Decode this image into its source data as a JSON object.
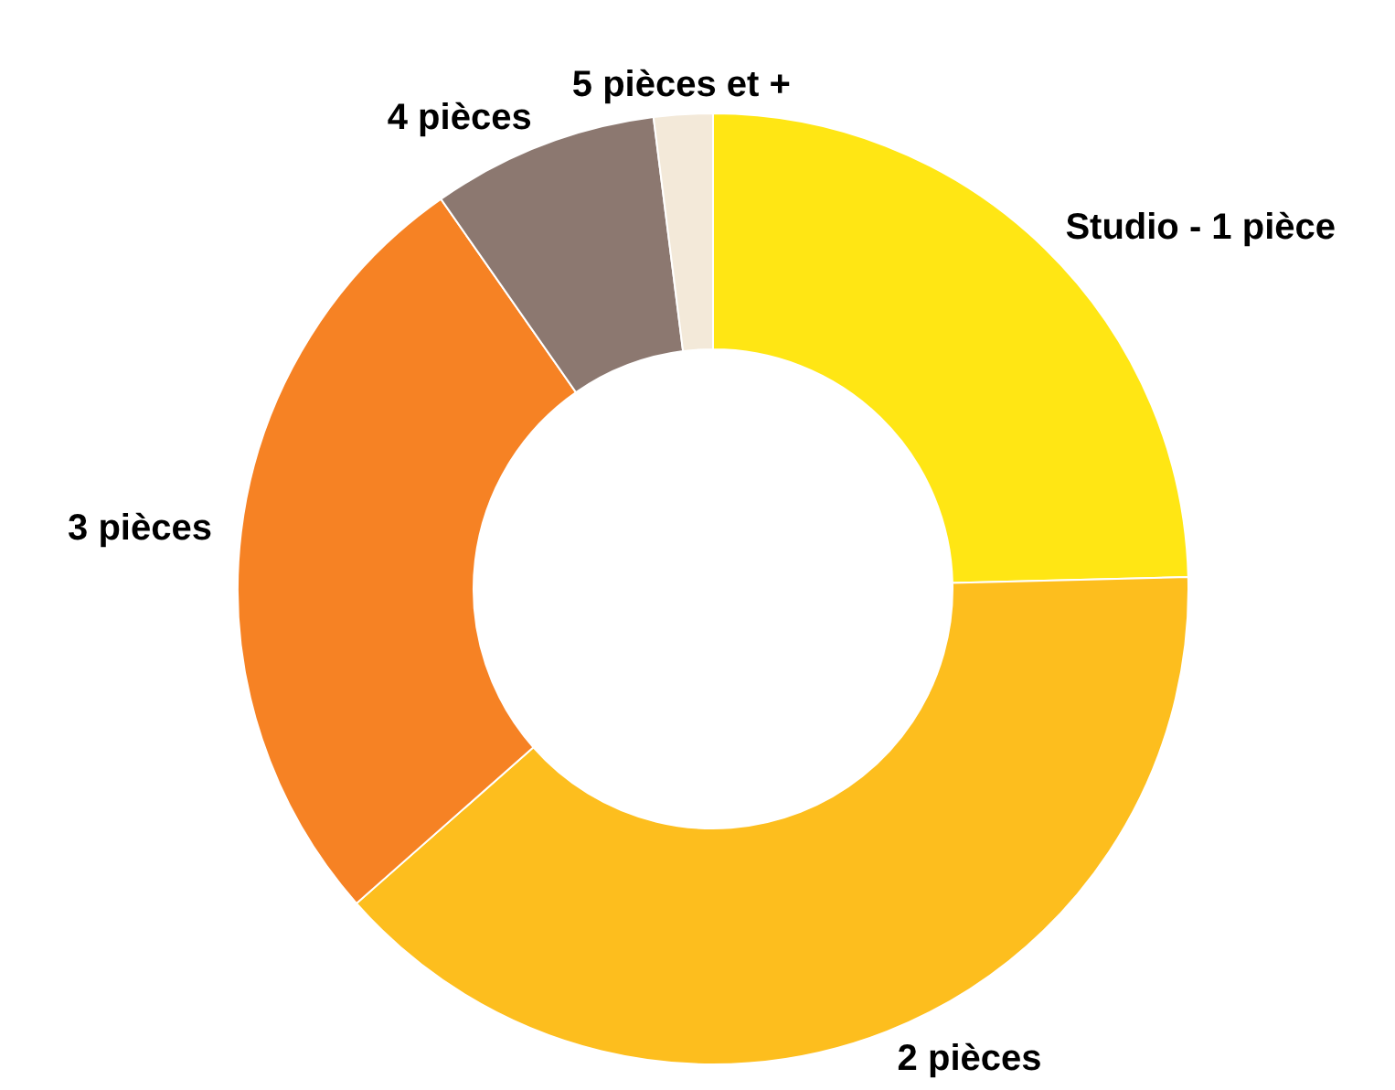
{
  "chart_data": {
    "type": "donut",
    "categories": [
      "Studio - 1 pièce",
      "2 pièces",
      "3 pièces",
      "4 pièces",
      "5 pièces et +"
    ],
    "values": [
      24.6,
      38.9,
      26.8,
      7.7,
      2.0
    ],
    "colors": [
      "#ffe614",
      "#fdbe1e",
      "#f68224",
      "#8c7870",
      "#f3e9d9"
    ]
  }
}
